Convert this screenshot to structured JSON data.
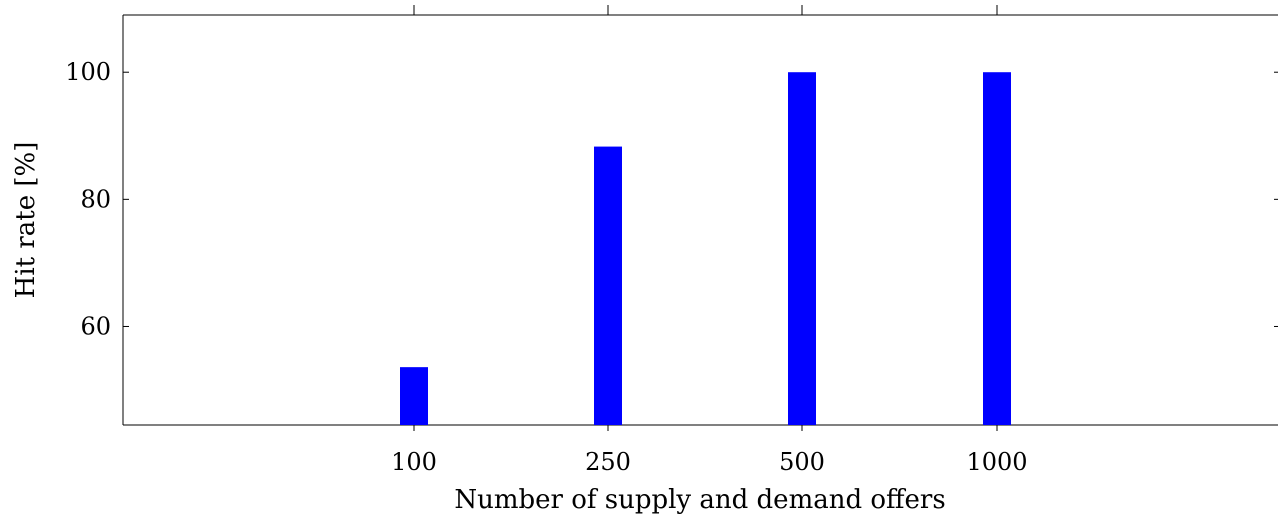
{
  "chart_data": {
    "type": "bar",
    "title": "",
    "xlabel": "Number of supply and demand offers",
    "ylabel": "Hit rate [%]",
    "categories": [
      "100",
      "250",
      "500",
      "1000"
    ],
    "values": [
      53.6,
      88.3,
      100,
      100
    ],
    "ylim": [
      44.5,
      109
    ],
    "yticks": [
      60,
      80,
      100
    ],
    "grid": false,
    "bar_color": "#0000ff"
  }
}
